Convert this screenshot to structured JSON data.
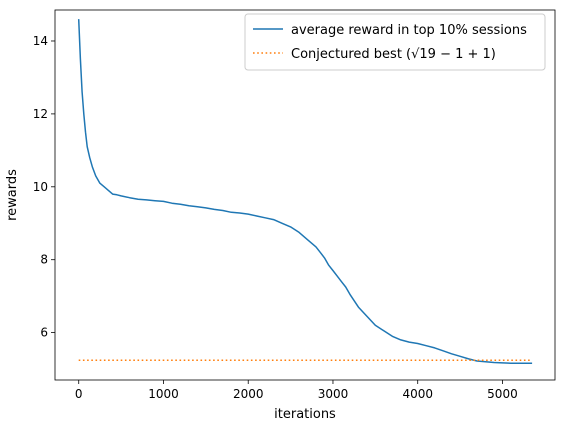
{
  "chart_data": {
    "type": "line",
    "title": "",
    "xlabel": "iterations",
    "ylabel": "rewards",
    "xlim": [
      -280,
      5620
    ],
    "ylim": [
      4.7,
      14.85
    ],
    "xticks": [
      0,
      1000,
      2000,
      3000,
      4000,
      5000
    ],
    "yticks": [
      6,
      8,
      10,
      12,
      14
    ],
    "grid": false,
    "legend_position": "top-right",
    "series": [
      {
        "name": "average reward in top 10% sessions",
        "style": "solid",
        "color": "#1f77b4",
        "x": [
          0,
          20,
          40,
          60,
          80,
          100,
          130,
          160,
          200,
          250,
          300,
          350,
          400,
          450,
          500,
          600,
          700,
          800,
          900,
          1000,
          1100,
          1200,
          1300,
          1400,
          1500,
          1600,
          1700,
          1800,
          1900,
          2000,
          2100,
          2200,
          2300,
          2400,
          2500,
          2600,
          2700,
          2800,
          2850,
          2900,
          2950,
          3000,
          3050,
          3100,
          3150,
          3200,
          3300,
          3400,
          3500,
          3600,
          3700,
          3800,
          3900,
          4000,
          4100,
          4200,
          4300,
          4400,
          4500,
          4600,
          4700,
          4800,
          4900,
          5000,
          5100,
          5200,
          5350
        ],
        "y": [
          14.6,
          13.5,
          12.6,
          12.0,
          11.5,
          11.1,
          10.8,
          10.55,
          10.3,
          10.1,
          10.0,
          9.9,
          9.8,
          9.78,
          9.75,
          9.7,
          9.66,
          9.64,
          9.62,
          9.6,
          9.55,
          9.52,
          9.48,
          9.45,
          9.42,
          9.38,
          9.35,
          9.3,
          9.28,
          9.25,
          9.2,
          9.15,
          9.1,
          9.0,
          8.9,
          8.75,
          8.55,
          8.35,
          8.2,
          8.05,
          7.85,
          7.7,
          7.55,
          7.4,
          7.25,
          7.05,
          6.7,
          6.45,
          6.2,
          6.05,
          5.9,
          5.8,
          5.74,
          5.7,
          5.64,
          5.58,
          5.5,
          5.42,
          5.35,
          5.28,
          5.22,
          5.2,
          5.18,
          5.17,
          5.16,
          5.16,
          5.16
        ]
      },
      {
        "name": "Conjectured best (√19 − 1 + 1)",
        "style": "dotted",
        "color": "#ff7f0e",
        "x": [
          0,
          5350
        ],
        "y": [
          5.24,
          5.24
        ]
      }
    ]
  }
}
